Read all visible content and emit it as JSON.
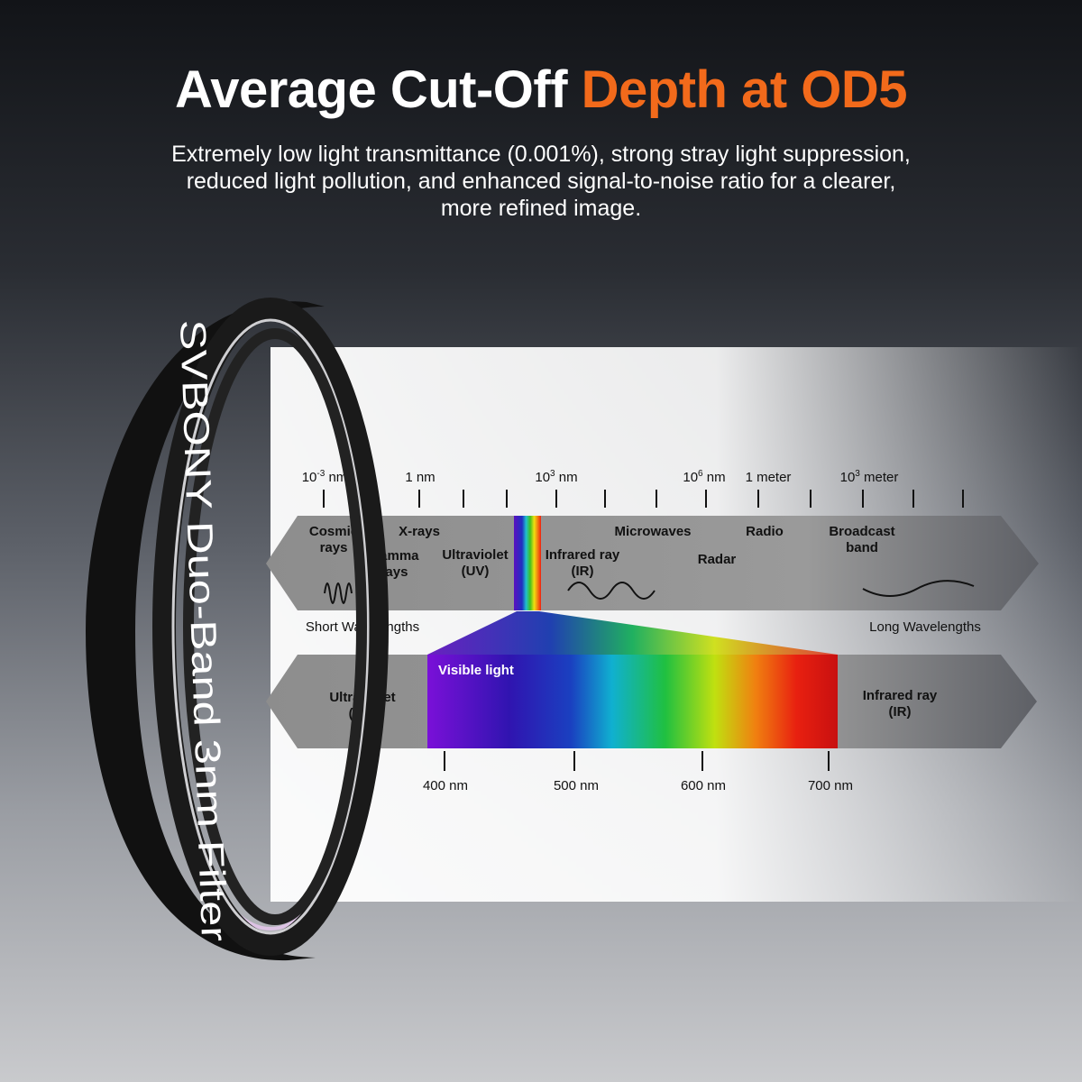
{
  "headline": {
    "white": "Average Cut-Off ",
    "orange": "Depth at OD5",
    "accent_color": "#f26a1b"
  },
  "subtitle": [
    "Extremely low light transmittance (0.001%), strong stray light suppression,",
    "reduced light pollution, and enhanced signal-to-noise ratio for a clearer,",
    "more refined image."
  ],
  "product": {
    "ring_text": "SVBONY Duo-Band 3nm Filter"
  },
  "spectrum": {
    "scale_labels": [
      {
        "base": "10",
        "exp": "-3",
        "unit": " nm"
      },
      {
        "base": "1 nm",
        "exp": "",
        "unit": ""
      },
      {
        "base": "10",
        "exp": "3",
        "unit": " nm"
      },
      {
        "base": "10",
        "exp": "6",
        "unit": " nm"
      },
      {
        "base": "1 meter",
        "exp": "",
        "unit": ""
      },
      {
        "base": "10",
        "exp": "3",
        "unit": " meter"
      }
    ],
    "bands": {
      "cosmic": [
        "Cosmic",
        "rays"
      ],
      "xrays": "X-rays",
      "gamma": [
        "Gamma",
        "rays"
      ],
      "uv": [
        "Ultraviolet",
        "(UV)"
      ],
      "ir": [
        "Infrared ray",
        "(IR)"
      ],
      "microwaves": "Microwaves",
      "radar": "Radar",
      "radio": "Radio",
      "broadcast": [
        "Broadcast",
        "band"
      ]
    },
    "short_label": "Short Wavelengths",
    "long_label": "Long Wavelengths",
    "visible": {
      "title": "Visible light",
      "uv": [
        "Ultraviolet",
        "(UV)"
      ],
      "ir": [
        "Infrared ray",
        "(IR)"
      ],
      "ticks": [
        "400 nm",
        "500 nm",
        "600 nm",
        "700 nm"
      ]
    }
  }
}
